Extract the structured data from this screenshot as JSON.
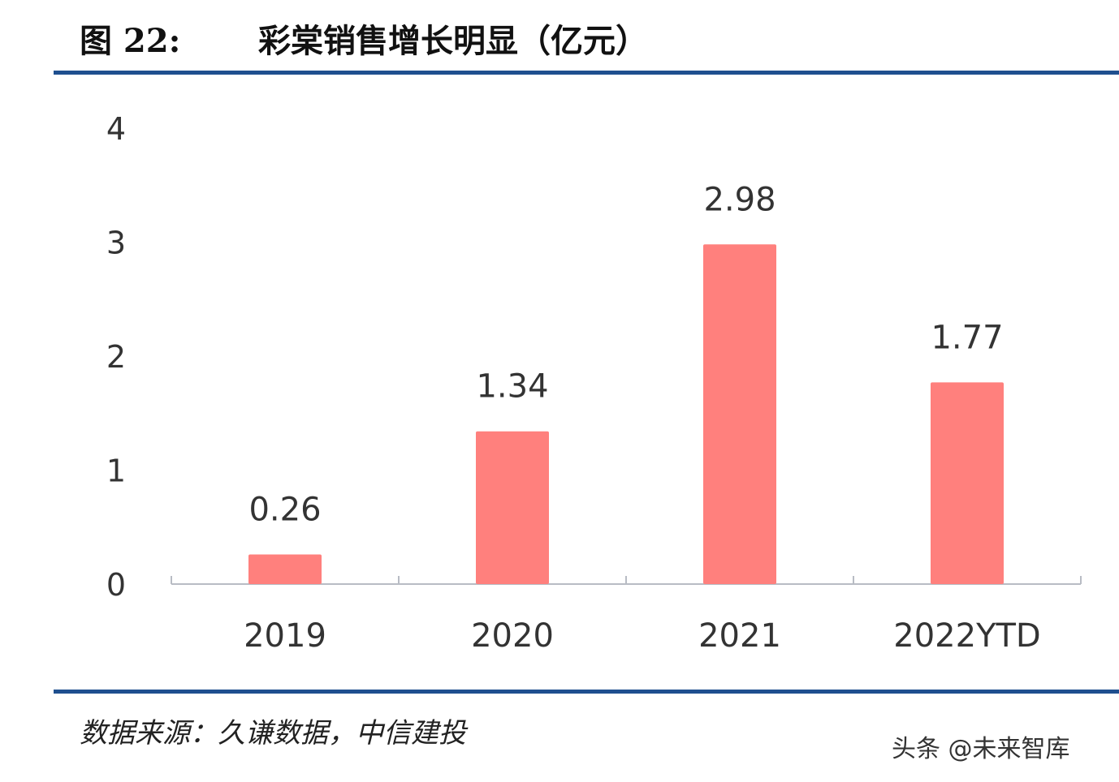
{
  "figure_label": "图 22:",
  "chart_data": {
    "type": "bar",
    "title": "彩棠销售增长明显（亿元）",
    "categories": [
      "2019",
      "2020",
      "2021",
      "2022YTD"
    ],
    "values": [
      0.26,
      1.34,
      2.98,
      1.77
    ],
    "data_labels": [
      "0.26",
      "1.34",
      "2.98",
      "1.77"
    ],
    "ylim": [
      0,
      4
    ],
    "yticks": [
      "0",
      "1",
      "2",
      "3",
      "4"
    ],
    "grid": false,
    "bar_color": "#FF807D",
    "xlabel": "",
    "ylabel": ""
  },
  "source": "数据来源：久谦数据，中信建投",
  "watermark": "头条 @未来智库",
  "colors": {
    "rule": "#1f4f8f",
    "axis": "#b8bcc4",
    "text": "#333333"
  }
}
